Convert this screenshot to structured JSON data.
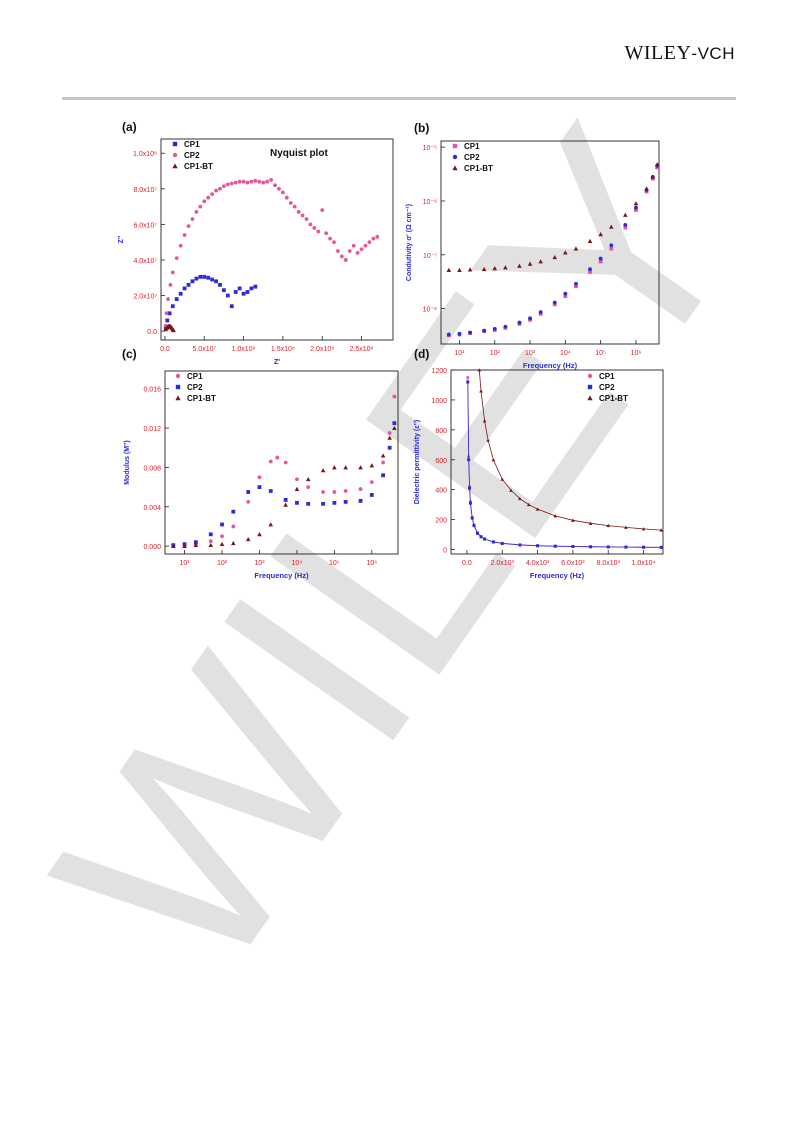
{
  "header": {
    "publisher_main": "WILEY",
    "publisher_sep": "-",
    "publisher_suffix": "VCH"
  },
  "watermark": {
    "text": "WILEY"
  },
  "colors": {
    "cp1": "#e8559b",
    "cp2": "#2b2bdc",
    "cp1bt": "#7a1616",
    "axis_tick": "#e0202a",
    "axis_label": "#2b2bd8",
    "watermark": "#d9d9d9"
  },
  "chart_data": [
    {
      "panel": "(a)",
      "type": "scatter",
      "title": "Nyquist plot",
      "xlabel": "Z'",
      "ylabel": "Z''",
      "xlim": [
        -5000000,
        290000000
      ],
      "ylim": [
        -5000000,
        108000000
      ],
      "xticks": [
        0,
        50000000,
        100000000,
        150000000,
        200000000,
        250000000
      ],
      "xtick_labels": [
        "0.0",
        "5.0x10⁷",
        "1.0x10⁸",
        "1.5x10⁸",
        "2.0x10⁸",
        "2.5x10⁸"
      ],
      "yticks": [
        0,
        20000000,
        40000000,
        60000000,
        80000000,
        100000000
      ],
      "ytick_labels": [
        "0.0",
        "2.0x10⁷",
        "4.0x10⁷",
        "6.0x10⁷",
        "8.0x10⁷",
        "1.0x10⁸"
      ],
      "legend_position": "top-left",
      "series": [
        {
          "name": "CP1",
          "marker": "square",
          "color": "#2b2bdc",
          "x": [
            1000000,
            3000000,
            6000000,
            10000000,
            15000000,
            20000000,
            25000000,
            30000000,
            35000000,
            40000000,
            45000000,
            50000000,
            55000000,
            60000000,
            65000000,
            70000000,
            75000000,
            80000000,
            85000000,
            90000000,
            95000000,
            100000000,
            105000000,
            110000000,
            115000000
          ],
          "y": [
            2000000,
            6000000,
            10000000,
            14000000,
            18000000,
            21000000,
            24000000,
            26000000,
            28000000,
            29500000,
            30500000,
            30500000,
            30000000,
            29000000,
            28000000,
            26000000,
            23000000,
            20000000,
            14000000,
            22000000,
            24000000,
            21000000,
            22000000,
            24000000,
            25000000
          ]
        },
        {
          "name": "CP2",
          "marker": "circle",
          "color": "#e8559b",
          "x": [
            1000000,
            2000000,
            4000000,
            7000000,
            10000000,
            15000000,
            20000000,
            25000000,
            30000000,
            35000000,
            40000000,
            45000000,
            50000000,
            55000000,
            60000000,
            65000000,
            70000000,
            75000000,
            80000000,
            85000000,
            90000000,
            95000000,
            100000000,
            105000000,
            110000000,
            115000000,
            120000000,
            125000000,
            130000000,
            135000000,
            140000000,
            145000000,
            150000000,
            155000000,
            160000000,
            165000000,
            170000000,
            175000000,
            180000000,
            185000000,
            190000000,
            195000000,
            200000000,
            205000000,
            210000000,
            215000000,
            220000000,
            225000000,
            230000000,
            235000000,
            240000000,
            245000000,
            250000000,
            255000000,
            260000000,
            265000000,
            270000000
          ],
          "y": [
            3000000,
            10000000,
            18000000,
            26000000,
            33000000,
            41000000,
            48000000,
            54000000,
            59000000,
            63000000,
            67000000,
            70000000,
            73000000,
            75000000,
            77000000,
            79000000,
            80000000,
            81500000,
            82500000,
            83000000,
            83500000,
            84000000,
            84000000,
            83500000,
            84000000,
            84500000,
            84000000,
            83500000,
            84000000,
            85000000,
            82000000,
            80000000,
            78000000,
            75000000,
            72000000,
            70000000,
            67000000,
            65000000,
            63000000,
            60000000,
            58000000,
            56000000,
            68000000,
            55000000,
            52000000,
            50000000,
            45000000,
            42000000,
            40000000,
            45000000,
            48000000,
            44000000,
            46000000,
            48000000,
            50000000,
            52000000,
            53000000
          ]
        },
        {
          "name": "CP1-BT",
          "marker": "triangle",
          "color": "#7a1616",
          "x": [
            1000000,
            2000000,
            3000000,
            4000000,
            5000000,
            6000000,
            7000000,
            8000000,
            9000000,
            10000000,
            11000000
          ],
          "y": [
            1000000,
            1700000,
            2200000,
            2600000,
            2800000,
            2900000,
            2700000,
            2300000,
            1700000,
            1000000,
            500000
          ]
        }
      ]
    },
    {
      "panel": "(b)",
      "type": "scatter",
      "xlabel": "Frequency  (Hz)",
      "ylabel": "Condutivity σ' (Ω cm⁻¹)",
      "xscale": "log",
      "yscale": "log",
      "xlim": [
        3,
        4500000
      ],
      "ylim": [
        2.2e-09,
        1.3e-05
      ],
      "xtick_labels": [
        "10¹",
        "10²",
        "10³",
        "10⁴",
        "10⁵",
        "10⁶"
      ],
      "ytick_labels": [
        "10⁻⁸",
        "10⁻⁷",
        "10⁻⁶",
        "10⁻⁵"
      ],
      "legend_position": "top-left",
      "series": [
        {
          "name": "CP1",
          "marker": "square",
          "color": "#e8559b",
          "x": [
            5,
            10,
            20,
            50,
            100,
            200,
            500,
            1000,
            2000,
            5000,
            10000,
            20000,
            50000,
            100000,
            200000,
            500000,
            1000000,
            2000000,
            3000000,
            4000000
          ],
          "y": [
            3.2e-09,
            3.3e-09,
            3.5e-09,
            3.8e-09,
            4e-09,
            4.4e-09,
            5.2e-09,
            6.2e-09,
            8e-09,
            1.2e-08,
            1.7e-08,
            2.6e-08,
            4.8e-08,
            7.5e-08,
            1.3e-07,
            3.2e-07,
            6.8e-07,
            1.5e-06,
            2.6e-06,
            4.2e-06
          ]
        },
        {
          "name": "CP2",
          "marker": "circle",
          "color": "#2b2bdc",
          "x": [
            5,
            10,
            20,
            50,
            100,
            200,
            500,
            1000,
            2000,
            5000,
            10000,
            20000,
            50000,
            100000,
            200000,
            500000,
            1000000,
            2000000,
            3000000,
            4000000
          ],
          "y": [
            3.3e-09,
            3.4e-09,
            3.6e-09,
            3.9e-09,
            4.2e-09,
            4.6e-09,
            5.5e-09,
            6.6e-09,
            8.6e-09,
            1.3e-08,
            1.9e-08,
            2.9e-08,
            5.4e-08,
            8.5e-08,
            1.5e-07,
            3.6e-07,
            7.5e-07,
            1.6e-06,
            2.8e-06,
            4.5e-06
          ]
        },
        {
          "name": "CP1-BT",
          "marker": "triangle",
          "color": "#7a1616",
          "x": [
            5,
            10,
            20,
            50,
            100,
            200,
            500,
            1000,
            2000,
            5000,
            10000,
            20000,
            50000,
            100000,
            200000,
            500000,
            1000000,
            2000000,
            3000000,
            4000000
          ],
          "y": [
            5.2e-08,
            5.2e-08,
            5.3e-08,
            5.4e-08,
            5.6e-08,
            5.8e-08,
            6.2e-08,
            6.8e-08,
            7.5e-08,
            9e-08,
            1.1e-07,
            1.3e-07,
            1.8e-07,
            2.4e-07,
            3.3e-07,
            5.5e-07,
            9e-07,
            1.7e-06,
            2.8e-06,
            4.8e-06
          ]
        }
      ]
    },
    {
      "panel": "(c)",
      "type": "scatter",
      "xlabel": "Frequency (Hz)",
      "ylabel": "Modulus (M'')",
      "xscale": "log",
      "xlim": [
        3,
        5000000
      ],
      "ylim": [
        -0.0008,
        0.0178
      ],
      "xtick_labels": [
        "10¹",
        "10²",
        "10³",
        "10⁴",
        "10⁵",
        "10⁶"
      ],
      "yticks": [
        0,
        0.004,
        0.008,
        0.012,
        0.016
      ],
      "ytick_labels": [
        "0.000",
        "0.004",
        "0.008",
        "0.012",
        "0.016"
      ],
      "legend_position": "top-left",
      "series": [
        {
          "name": "CP1",
          "marker": "circle",
          "color": "#e8559b",
          "x": [
            5,
            10,
            20,
            50,
            100,
            200,
            500,
            1000,
            2000,
            3000,
            5000,
            10000,
            20000,
            50000,
            100000,
            200000,
            500000,
            1000000,
            2000000,
            3000000,
            4000000
          ],
          "y": [
            0.0001,
            0.0001,
            0.0002,
            0.0005,
            0.001,
            0.002,
            0.0045,
            0.007,
            0.0086,
            0.009,
            0.0085,
            0.0068,
            0.006,
            0.0055,
            0.0055,
            0.0056,
            0.0058,
            0.0065,
            0.0085,
            0.0115,
            0.0152
          ]
        },
        {
          "name": "CP2",
          "marker": "square",
          "color": "#2b2bdc",
          "x": [
            5,
            10,
            20,
            50,
            100,
            200,
            500,
            1000,
            2000,
            5000,
            10000,
            20000,
            50000,
            100000,
            200000,
            500000,
            1000000,
            2000000,
            3000000,
            4000000
          ],
          "y": [
            0.0001,
            0.0002,
            0.0004,
            0.0012,
            0.0022,
            0.0035,
            0.0055,
            0.006,
            0.0056,
            0.0047,
            0.0044,
            0.0043,
            0.0043,
            0.0044,
            0.0045,
            0.0046,
            0.0052,
            0.0072,
            0.01,
            0.0125
          ]
        },
        {
          "name": "CP1-BT",
          "marker": "triangle",
          "color": "#7a1616",
          "x": [
            5,
            10,
            20,
            50,
            100,
            200,
            500,
            1000,
            2000,
            5000,
            10000,
            20000,
            50000,
            100000,
            200000,
            500000,
            1000000,
            2000000,
            3000000,
            4000000
          ],
          "y": [
            0.0,
            0.0,
            0.0001,
            0.0001,
            0.0002,
            0.0003,
            0.0007,
            0.0012,
            0.0022,
            0.0042,
            0.0058,
            0.0068,
            0.0077,
            0.008,
            0.008,
            0.008,
            0.0082,
            0.0092,
            0.011,
            0.012
          ]
        }
      ]
    },
    {
      "panel": "(d)",
      "type": "line",
      "xlabel": "Frequency (Hz)",
      "ylabel": "Dielectric permittivity (ε'')",
      "xlim": [
        -900,
        11100
      ],
      "ylim": [
        -30,
        1200
      ],
      "xticks": [
        0,
        2000,
        4000,
        6000,
        8000,
        10000
      ],
      "xtick_labels": [
        "0.0",
        "2.0x10³",
        "4.0x10³",
        "6.0x10³",
        "8.0x10³",
        "1.0x10⁴"
      ],
      "yticks": [
        0,
        200,
        400,
        600,
        800,
        1000,
        1200
      ],
      "ytick_labels": [
        "0",
        "200",
        "400",
        "600",
        "800",
        "1000",
        "1200"
      ],
      "legend_position": "top-right",
      "series": [
        {
          "name": "CP1",
          "marker": "circle",
          "color": "#e8559b",
          "x": [
            50,
            100,
            150,
            200,
            300,
            400,
            600,
            800,
            1000,
            1500,
            2000,
            3000,
            4000,
            5000,
            6000,
            7000,
            8000,
            9000,
            10000,
            11000
          ],
          "y": [
            1150,
            620,
            420,
            320,
            215,
            165,
            112,
            88,
            72,
            52,
            42,
            32,
            26,
            23,
            21,
            19,
            18,
            17,
            16,
            15
          ]
        },
        {
          "name": "CP2",
          "marker": "square",
          "color": "#2b2bdc",
          "x": [
            50,
            100,
            150,
            200,
            300,
            400,
            600,
            800,
            1000,
            1500,
            2000,
            3000,
            4000,
            5000,
            6000,
            7000,
            8000,
            9000,
            10000,
            11000
          ],
          "y": [
            1120,
            600,
            410,
            310,
            210,
            160,
            108,
            85,
            70,
            50,
            40,
            30,
            25,
            22,
            20,
            18,
            17,
            16,
            15,
            14
          ]
        },
        {
          "name": "CP1-BT",
          "marker": "triangle",
          "color": "#7a1616",
          "x": [
            700,
            800,
            1000,
            1200,
            1500,
            2000,
            2500,
            3000,
            3500,
            4000,
            5000,
            6000,
            7000,
            8000,
            9000,
            10000,
            11000
          ],
          "y": [
            1200,
            1060,
            860,
            730,
            600,
            470,
            395,
            340,
            300,
            270,
            225,
            195,
            175,
            160,
            148,
            138,
            130
          ]
        }
      ]
    }
  ]
}
